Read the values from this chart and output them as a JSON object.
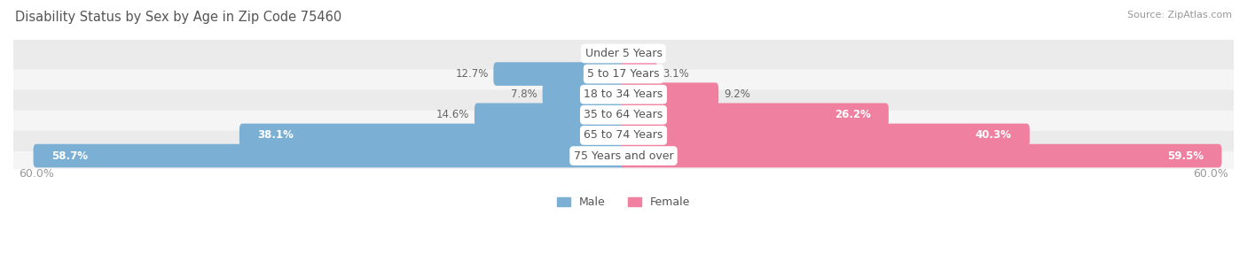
{
  "title": "Disability Status by Sex by Age in Zip Code 75460",
  "source": "Source: ZipAtlas.com",
  "categories": [
    "Under 5 Years",
    "5 to 17 Years",
    "18 to 34 Years",
    "35 to 64 Years",
    "65 to 74 Years",
    "75 Years and over"
  ],
  "male_values": [
    0.0,
    12.7,
    7.8,
    14.6,
    38.1,
    58.7
  ],
  "female_values": [
    0.0,
    3.1,
    9.2,
    26.2,
    40.3,
    59.5
  ],
  "male_color": "#7bafd4",
  "female_color": "#f080a0",
  "row_bg_even": "#f5f5f5",
  "row_bg_odd": "#ebebeb",
  "max_val": 60.0,
  "title_color": "#555555",
  "label_color": "#999999",
  "value_fontsize": 8.5,
  "cat_fontsize": 9,
  "title_fontsize": 10.5
}
